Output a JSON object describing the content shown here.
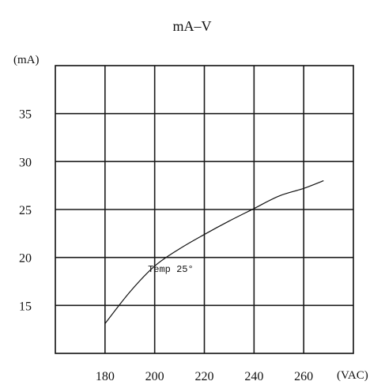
{
  "chart_data": {
    "type": "line",
    "title": "mA–V",
    "xlabel": "(VAC)",
    "ylabel": "(mA)",
    "x_ticks": [
      180,
      200,
      220,
      240,
      260
    ],
    "y_ticks": [
      15,
      20,
      25,
      30,
      35
    ],
    "xlim": [
      160,
      280
    ],
    "ylim": [
      10,
      40
    ],
    "grid": true,
    "annotation": "Temp 25°",
    "annotation_position": {
      "x": 210,
      "y": 19.4
    },
    "series": [
      {
        "x": [
          180,
          190,
          200,
          210,
          220,
          230,
          240,
          250,
          260,
          268
        ],
        "y": [
          13.1,
          16.4,
          19.1,
          20.9,
          22.4,
          23.8,
          25.1,
          26.4,
          27.2,
          28.0
        ]
      }
    ]
  }
}
